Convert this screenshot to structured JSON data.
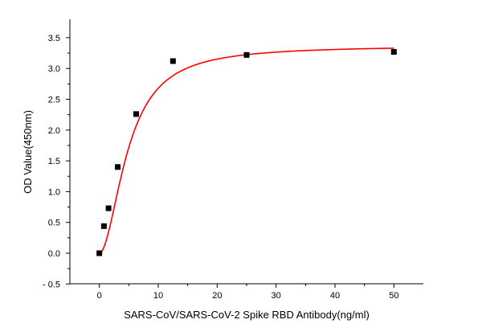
{
  "chart_data": {
    "type": "scatter",
    "title": "",
    "xlabel": "SARS-CoV/SARS-CoV-2 Spike RBD Antibody(ng/ml)",
    "ylabel": "OD Value(450nm)",
    "xlim": [
      -5,
      55
    ],
    "ylim": [
      -0.5,
      3.6
    ],
    "x_ticks": [
      0,
      10,
      20,
      30,
      40,
      50
    ],
    "x_minor_ticks": [
      5,
      15,
      25,
      35,
      45
    ],
    "y_ticks": [
      -0.5,
      0.0,
      0.5,
      1.0,
      1.5,
      2.0,
      2.5,
      3.0,
      3.5
    ],
    "y_minor_ticks": [
      -0.25,
      0.25,
      0.75,
      1.25,
      1.75,
      2.25,
      2.75,
      3.25
    ],
    "x_tick_labels": [
      "0",
      "10",
      "20",
      "30",
      "40",
      "50"
    ],
    "y_tick_labels": [
      "- 0.5",
      "0.0",
      "0.5",
      "1.0",
      "1.5",
      "2.0",
      "2.5",
      "3.0",
      "3.5"
    ],
    "grid": false,
    "legend": "none",
    "series": [
      {
        "type": "scatter",
        "marker": "square",
        "color": "#000000",
        "x": [
          0,
          0.78,
          1.56,
          3.125,
          6.25,
          12.5,
          25,
          50
        ],
        "y": [
          0.0,
          0.44,
          0.73,
          1.4,
          2.26,
          3.12,
          3.22,
          3.27
        ]
      },
      {
        "type": "line",
        "fit": "four-parameter logistic",
        "color": "#ff0000",
        "bottom": 0.0,
        "top": 3.37,
        "ec50": 4.9,
        "hill": 1.9,
        "x_range": [
          0.1,
          50
        ]
      }
    ]
  }
}
